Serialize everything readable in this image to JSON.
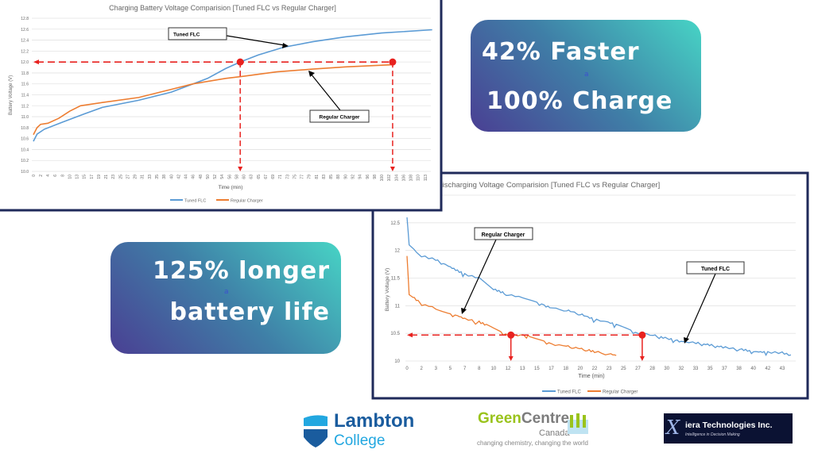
{
  "slide": {
    "callout_1": {
      "line1": "42% Faster",
      "line2": "100% Charge",
      "stray": "a"
    },
    "callout_2": {
      "line1": "125% longer",
      "line2": "battery life",
      "stray": "a"
    },
    "logos": {
      "lambton": {
        "line1": "Lambton",
        "line2": "College"
      },
      "greencentre": {
        "line1_a": "Green",
        "line1_b": "Centre",
        "line2": "Canada",
        "tagline": "changing chemistry, changing the world"
      },
      "xiera": {
        "name": "iera Technologies Inc.",
        "tagline": "Intelligence in Decision Making"
      }
    }
  },
  "colors": {
    "tuned": "#5b9bd5",
    "regular": "#ed7d31",
    "marker": "#e8221f",
    "frame": "#1f2a5a"
  },
  "chart_data": [
    {
      "type": "line",
      "title": "Charging Battery Voltage Comparision [Tuned FLC vs Regular Charger]",
      "xlabel": "Time (min)",
      "ylabel": "Battery Voltage (V)",
      "ylim": [
        10.0,
        12.8
      ],
      "yticks": [
        "10.0",
        "10.2",
        "10.4",
        "10.6",
        "10.8",
        "11.0",
        "11.2",
        "11.4",
        "11.6",
        "11.8",
        "12.0",
        "12.2",
        "12.4",
        "12.6",
        "12.8"
      ],
      "xticks": [
        0,
        2,
        4,
        6,
        8,
        10,
        13,
        15,
        17,
        19,
        21,
        23,
        25,
        27,
        29,
        31,
        33,
        35,
        38,
        40,
        42,
        44,
        46,
        48,
        50,
        52,
        54,
        56,
        58,
        60,
        63,
        65,
        67,
        69,
        71,
        73,
        75,
        77,
        79,
        81,
        83,
        85,
        88,
        90,
        92,
        94,
        96,
        98,
        100,
        102,
        104,
        106,
        108,
        110,
        113
      ],
      "grid": true,
      "legend": "bottom",
      "series": [
        {
          "name": "Tuned FLC",
          "x": [
            0,
            1,
            3,
            8,
            15,
            20,
            30,
            40,
            46,
            50,
            55,
            59,
            65,
            72,
            80,
            90,
            100,
            115
          ],
          "y": [
            10.55,
            10.68,
            10.77,
            10.9,
            11.05,
            11.17,
            11.3,
            11.45,
            11.6,
            11.7,
            11.88,
            12.0,
            12.13,
            12.27,
            12.37,
            12.46,
            12.53,
            12.59
          ]
        },
        {
          "name": "Regular Charger",
          "x": [
            0,
            1,
            2,
            4,
            7,
            10,
            14,
            20,
            30,
            40,
            46,
            55,
            60,
            70,
            80,
            90,
            103
          ],
          "y": [
            10.67,
            10.8,
            10.86,
            10.88,
            10.97,
            11.1,
            11.2,
            11.26,
            11.35,
            11.5,
            11.6,
            11.7,
            11.74,
            11.82,
            11.87,
            11.91,
            11.95
          ]
        }
      ],
      "annotations": [
        {
          "text": "Tuned FLC",
          "target_series": "Tuned FLC"
        },
        {
          "text": "Regular Charger",
          "target_series": "Regular Charger"
        }
      ],
      "reference_level": 12.0,
      "markers": [
        {
          "x": 59,
          "y": 12.0
        },
        {
          "x": 103,
          "y": 12.0
        }
      ]
    },
    {
      "type": "line",
      "title": "Discharging Voltage Comparision [Tuned FLC vs Regular Charger]",
      "xlabel": "Time (min)",
      "ylabel": "Battery Voltage (V)",
      "ylim": [
        10,
        13
      ],
      "yticks": [
        "10",
        "10.5",
        "11",
        "11.5",
        "12",
        "12.5"
      ],
      "xticks": [
        0,
        2,
        3,
        5,
        7,
        8,
        10,
        12,
        13,
        15,
        17,
        18,
        20,
        22,
        23,
        25,
        27,
        28,
        30,
        32,
        33,
        35,
        37,
        38,
        40,
        42,
        43
      ],
      "grid": true,
      "legend": "bottom",
      "series": [
        {
          "name": "Tuned FLC",
          "x": [
            0,
            0.3,
            2,
            5,
            8,
            10,
            13,
            16,
            20,
            24,
            27,
            32,
            36,
            40,
            43,
            44
          ],
          "y": [
            12.6,
            12.1,
            11.9,
            11.7,
            11.5,
            11.3,
            11.15,
            11.0,
            10.85,
            10.65,
            10.5,
            10.35,
            10.27,
            10.17,
            10.15,
            10.1
          ]
        },
        {
          "name": "Regular Charger",
          "x": [
            0,
            0.3,
            3,
            6,
            9,
            12,
            14,
            17,
            21,
            24
          ],
          "y": [
            11.9,
            11.2,
            10.95,
            10.82,
            10.65,
            10.48,
            10.45,
            10.3,
            10.2,
            10.1
          ]
        }
      ],
      "annotations": [
        {
          "text": "Regular Charger",
          "target_series": "Regular Charger"
        },
        {
          "text": "Tuned FLC",
          "target_series": "Tuned FLC"
        }
      ],
      "reference_level": 10.47,
      "markers": [
        {
          "x": 12.2,
          "y": 10.47
        },
        {
          "x": 27.3,
          "y": 10.47
        }
      ]
    }
  ]
}
